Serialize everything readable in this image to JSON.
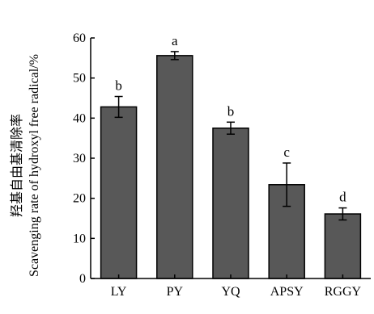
{
  "chart_data": {
    "type": "bar",
    "title": "",
    "xlabel": "",
    "ylabel_cn": "羟基自由基清除率",
    "ylabel_en": "Scavenging rate of hydroxyl free radical/%",
    "categories": [
      "LY",
      "PY",
      "YQ",
      "APSY",
      "RGGY"
    ],
    "values": [
      42.8,
      55.6,
      37.5,
      23.4,
      16.1
    ],
    "errors": [
      2.6,
      1.0,
      1.5,
      5.4,
      1.5
    ],
    "significance": [
      "b",
      "a",
      "b",
      "c",
      "d"
    ],
    "ylim": [
      0,
      60
    ],
    "yticks": [
      0,
      10,
      20,
      30,
      40,
      50,
      60
    ],
    "grid": false,
    "bar_color": "#585858"
  }
}
